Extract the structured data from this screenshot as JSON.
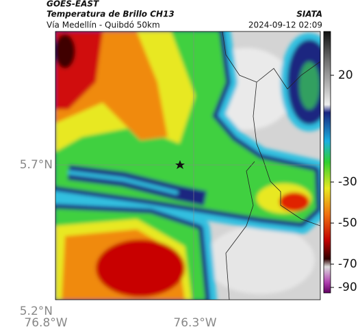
{
  "header": {
    "source": "GOES-EAST",
    "title": "Temperatura de Brillo CH13",
    "brand": "SIATA",
    "route": "Vía Medellín - Quibdó 50km",
    "datetime": "2024-09-12 02:09"
  },
  "axes": {
    "lat_labels": [
      "5.7°N",
      "5.2°N"
    ],
    "lon_labels": [
      "76.8°W",
      "76.3°W"
    ]
  },
  "colorbar": {
    "ticks": [
      20,
      -30,
      -50,
      -70,
      -90
    ]
  }
}
